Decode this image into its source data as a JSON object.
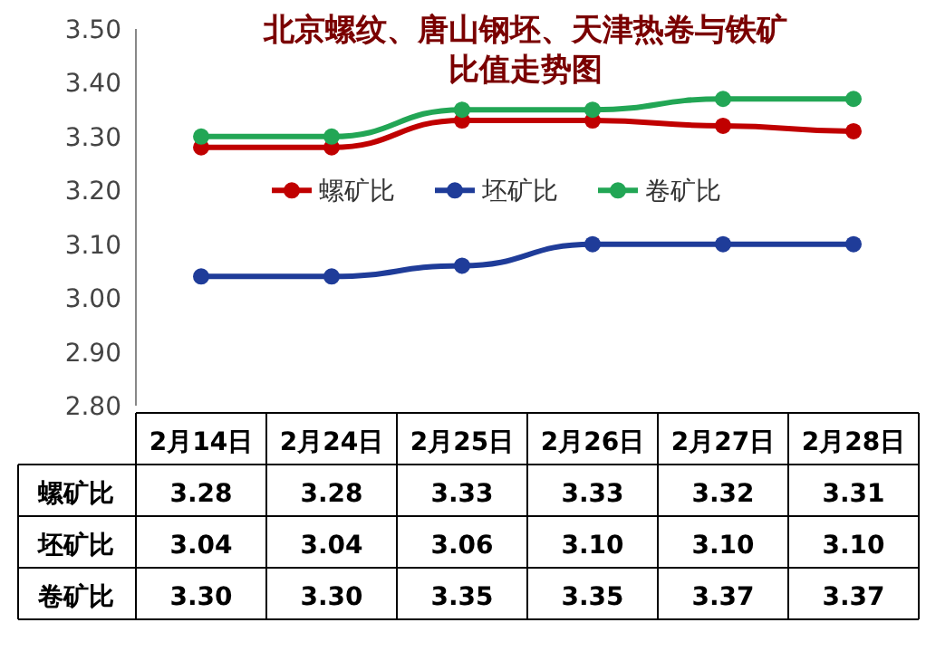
{
  "chart_data": {
    "type": "line",
    "title": "北京螺纹、唐山钢坯、天津热卷与铁矿比值走势图",
    "categories": [
      "2月14日",
      "2月24日",
      "2月25日",
      "2月26日",
      "2月27日",
      "2月28日"
    ],
    "series": [
      {
        "name": "螺矿比",
        "color": "#c00000",
        "values": [
          3.28,
          3.28,
          3.33,
          3.33,
          3.32,
          3.31
        ],
        "value_labels": [
          "3.28",
          "3.28",
          "3.33",
          "3.33",
          "3.32",
          "3.31"
        ]
      },
      {
        "name": "坯矿比",
        "color": "#1f3c99",
        "values": [
          3.04,
          3.04,
          3.06,
          3.1,
          3.1,
          3.1
        ],
        "value_labels": [
          "3.04",
          "3.04",
          "3.06",
          "3.10",
          "3.10",
          "3.10"
        ]
      },
      {
        "name": "卷矿比",
        "color": "#22a655",
        "values": [
          3.3,
          3.3,
          3.35,
          3.35,
          3.37,
          3.37
        ],
        "value_labels": [
          "3.30",
          "3.30",
          "3.35",
          "3.35",
          "3.37",
          "3.37"
        ]
      }
    ],
    "ylim": [
      2.8,
      3.5
    ],
    "yticks": [
      {
        "value": 2.8,
        "label": "2.80"
      },
      {
        "value": 2.9,
        "label": "2.90"
      },
      {
        "value": 3.0,
        "label": "3.00"
      },
      {
        "value": 3.1,
        "label": "3.10"
      },
      {
        "value": 3.2,
        "label": "3.20"
      },
      {
        "value": 3.3,
        "label": "3.30"
      },
      {
        "value": 3.4,
        "label": "3.40"
      },
      {
        "value": 3.5,
        "label": "3.50"
      }
    ],
    "marker": "circle",
    "line_style": "solid",
    "legend": "center",
    "grid": false
  }
}
